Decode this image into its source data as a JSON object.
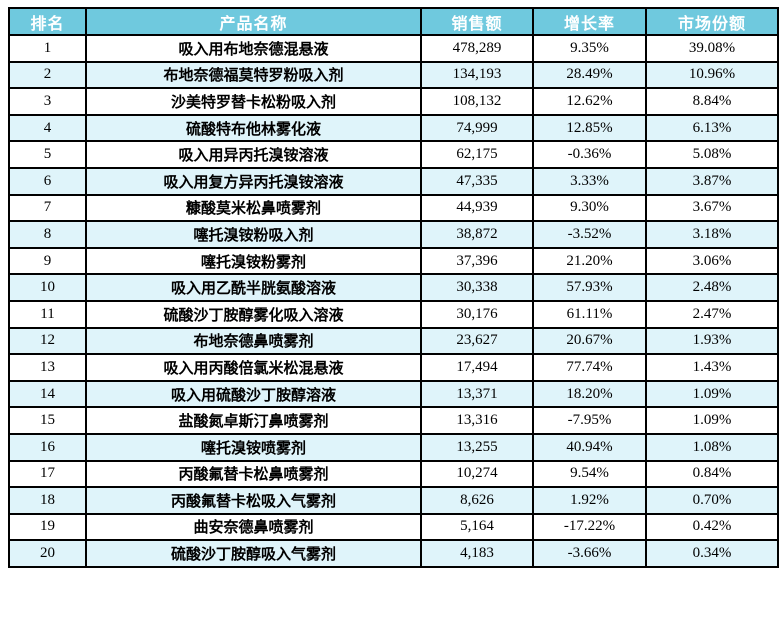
{
  "colors": {
    "header_bg": "#6fc9de",
    "header_text": "#ffffff",
    "row_alt_bg": "#dff4fa",
    "row_bg": "#ffffff",
    "border": "#000000"
  },
  "table": {
    "columns": [
      {
        "key": "rank",
        "label": "排名"
      },
      {
        "key": "name",
        "label": "产品名称"
      },
      {
        "key": "sales",
        "label": "销售额"
      },
      {
        "key": "growth",
        "label": "增长率"
      },
      {
        "key": "share",
        "label": "市场份额"
      }
    ],
    "rows": [
      {
        "rank": "1",
        "name": "吸入用布地奈德混悬液",
        "sales": "478,289",
        "growth": "9.35%",
        "share": "39.08%"
      },
      {
        "rank": "2",
        "name": "布地奈德福莫特罗粉吸入剂",
        "sales": "134,193",
        "growth": "28.49%",
        "share": "10.96%"
      },
      {
        "rank": "3",
        "name": "沙美特罗替卡松粉吸入剂",
        "sales": "108,132",
        "growth": "12.62%",
        "share": "8.84%"
      },
      {
        "rank": "4",
        "name": "硫酸特布他林雾化液",
        "sales": "74,999",
        "growth": "12.85%",
        "share": "6.13%"
      },
      {
        "rank": "5",
        "name": "吸入用异丙托溴铵溶液",
        "sales": "62,175",
        "growth": "-0.36%",
        "share": "5.08%"
      },
      {
        "rank": "6",
        "name": "吸入用复方异丙托溴铵溶液",
        "sales": "47,335",
        "growth": "3.33%",
        "share": "3.87%"
      },
      {
        "rank": "7",
        "name": "糠酸莫米松鼻喷雾剂",
        "sales": "44,939",
        "growth": "9.30%",
        "share": "3.67%"
      },
      {
        "rank": "8",
        "name": "噻托溴铵粉吸入剂",
        "sales": "38,872",
        "growth": "-3.52%",
        "share": "3.18%"
      },
      {
        "rank": "9",
        "name": "噻托溴铵粉雾剂",
        "sales": "37,396",
        "growth": "21.20%",
        "share": "3.06%"
      },
      {
        "rank": "10",
        "name": "吸入用乙酰半胱氨酸溶液",
        "sales": "30,338",
        "growth": "57.93%",
        "share": "2.48%"
      },
      {
        "rank": "11",
        "name": "硫酸沙丁胺醇雾化吸入溶液",
        "sales": "30,176",
        "growth": "61.11%",
        "share": "2.47%"
      },
      {
        "rank": "12",
        "name": "布地奈德鼻喷雾剂",
        "sales": "23,627",
        "growth": "20.67%",
        "share": "1.93%"
      },
      {
        "rank": "13",
        "name": "吸入用丙酸倍氯米松混悬液",
        "sales": "17,494",
        "growth": "77.74%",
        "share": "1.43%"
      },
      {
        "rank": "14",
        "name": "吸入用硫酸沙丁胺醇溶液",
        "sales": "13,371",
        "growth": "18.20%",
        "share": "1.09%"
      },
      {
        "rank": "15",
        "name": "盐酸氮卓斯汀鼻喷雾剂",
        "sales": "13,316",
        "growth": "-7.95%",
        "share": "1.09%"
      },
      {
        "rank": "16",
        "name": "噻托溴铵喷雾剂",
        "sales": "13,255",
        "growth": "40.94%",
        "share": "1.08%"
      },
      {
        "rank": "17",
        "name": "丙酸氟替卡松鼻喷雾剂",
        "sales": "10,274",
        "growth": "9.54%",
        "share": "0.84%"
      },
      {
        "rank": "18",
        "name": "丙酸氟替卡松吸入气雾剂",
        "sales": "8,626",
        "growth": "1.92%",
        "share": "0.70%"
      },
      {
        "rank": "19",
        "name": "曲安奈德鼻喷雾剂",
        "sales": "5,164",
        "growth": "-17.22%",
        "share": "0.42%"
      },
      {
        "rank": "20",
        "name": "硫酸沙丁胺醇吸入气雾剂",
        "sales": "4,183",
        "growth": "-3.66%",
        "share": "0.34%"
      }
    ]
  },
  "chart_data": {
    "type": "table",
    "title": "",
    "columns": [
      "排名",
      "产品名称",
      "销售额",
      "增长率",
      "市场份额"
    ],
    "categories": [
      "吸入用布地奈德混悬液",
      "布地奈德福莫特罗粉吸入剂",
      "沙美特罗替卡松粉吸入剂",
      "硫酸特布他林雾化液",
      "吸入用异丙托溴铵溶液",
      "吸入用复方异丙托溴铵溶液",
      "糠酸莫米松鼻喷雾剂",
      "噻托溴铵粉吸入剂",
      "噻托溴铵粉雾剂",
      "吸入用乙酰半胱氨酸溶液",
      "硫酸沙丁胺醇雾化吸入溶液",
      "布地奈德鼻喷雾剂",
      "吸入用丙酸倍氯米松混悬液",
      "吸入用硫酸沙丁胺醇溶液",
      "盐酸氮卓斯汀鼻喷雾剂",
      "噻托溴铵喷雾剂",
      "丙酸氟替卡松鼻喷雾剂",
      "丙酸氟替卡松吸入气雾剂",
      "曲安奈德鼻喷雾剂",
      "硫酸沙丁胺醇吸入气雾剂"
    ],
    "series": [
      {
        "name": "销售额",
        "values": [
          478289,
          134193,
          108132,
          74999,
          62175,
          47335,
          44939,
          38872,
          37396,
          30338,
          30176,
          23627,
          17494,
          13371,
          13316,
          13255,
          10274,
          8626,
          5164,
          4183
        ]
      },
      {
        "name": "增长率(%)",
        "values": [
          9.35,
          28.49,
          12.62,
          12.85,
          -0.36,
          3.33,
          9.3,
          -3.52,
          21.2,
          57.93,
          61.11,
          20.67,
          77.74,
          18.2,
          -7.95,
          40.94,
          9.54,
          1.92,
          -17.22,
          -3.66
        ]
      },
      {
        "name": "市场份额(%)",
        "values": [
          39.08,
          10.96,
          8.84,
          6.13,
          5.08,
          3.87,
          3.67,
          3.18,
          3.06,
          2.48,
          2.47,
          1.93,
          1.43,
          1.09,
          1.09,
          1.08,
          0.84,
          0.7,
          0.42,
          0.34
        ]
      }
    ]
  }
}
